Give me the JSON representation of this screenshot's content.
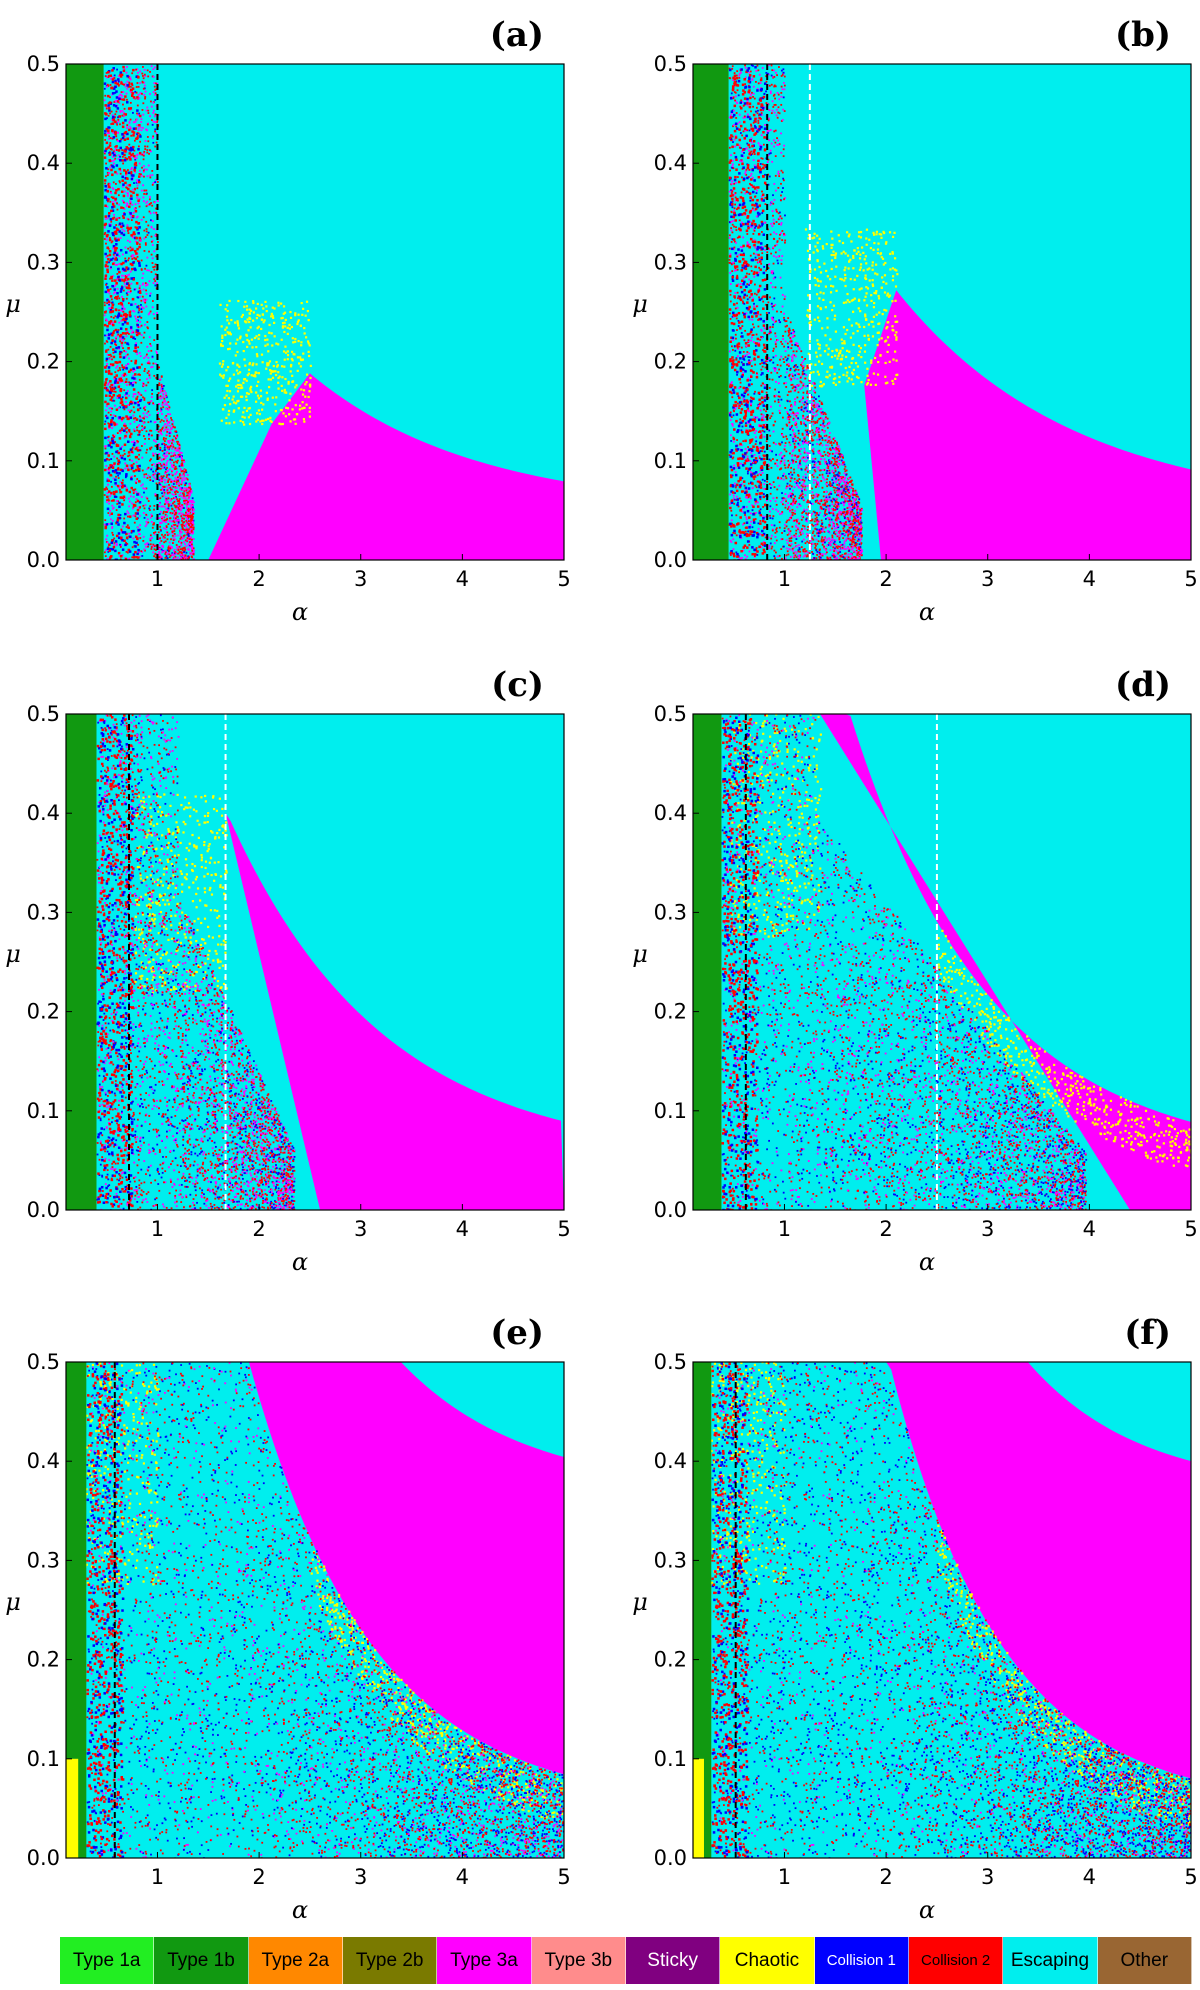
{
  "colors": {
    "type_1a": "#22ee22",
    "type_1b": "#119911",
    "type_2a": "#ff8800",
    "type_2b": "#7a7a00",
    "type_3a": "#ff00ff",
    "type_3b": "#ff8c8c",
    "sticky": "#800080",
    "chaotic": "#ffff00",
    "collision_1": "#0000ff",
    "collision_2": "#ff0000",
    "escaping": "#00eeee",
    "other": "#996633"
  },
  "legend": [
    {
      "label": "Type 1a",
      "color": "#22ee22",
      "text_color": "#000000"
    },
    {
      "label": "Type 1b",
      "color": "#119911",
      "text_color": "#000000"
    },
    {
      "label": "Type 2a",
      "color": "#ff8800",
      "text_color": "#000000"
    },
    {
      "label": "Type 2b",
      "color": "#7a7a00",
      "text_color": "#000000"
    },
    {
      "label": "Type 3a",
      "color": "#ff00ff",
      "text_color": "#000000"
    },
    {
      "label": "Type 3b",
      "color": "#ff8c8c",
      "text_color": "#000000"
    },
    {
      "label": "Sticky",
      "color": "#800080",
      "text_color": "#ffffff"
    },
    {
      "label": "Chaotic",
      "color": "#ffff00",
      "text_color": "#000000"
    },
    {
      "label": "Collision 1",
      "color": "#0000ff",
      "text_color": "#ffffff"
    },
    {
      "label": "Collision 2",
      "color": "#ff0000",
      "text_color": "#000000"
    },
    {
      "label": "Escaping",
      "color": "#00eeee",
      "text_color": "#000000"
    },
    {
      "label": "Other",
      "color": "#996633",
      "text_color": "#000000"
    }
  ],
  "chart_data": [
    {
      "panel": "(a)",
      "type": "heatmap",
      "xlabel": "α",
      "ylabel": "μ",
      "xlim": [
        0.1,
        5
      ],
      "ylim": [
        0,
        0.5
      ],
      "x_ticks": [
        1,
        2,
        3,
        4,
        5
      ],
      "x_tick_labels": [
        "1",
        "2",
        "3",
        "4",
        "5"
      ],
      "y_ticks": [
        0,
        0.1,
        0.2,
        0.3,
        0.4,
        0.5
      ],
      "y_tick_labels": [
        "0.0",
        "0.1",
        "0.2",
        "0.3",
        "0.4",
        "0.5"
      ],
      "markers": [
        {
          "x": 1.0,
          "style": "black-dashed"
        }
      ],
      "boundary_escape": {
        "a": 0.35,
        "b": 0.62
      },
      "chaotic_mu": 0.25,
      "regions": {
        "green_end": 0.47,
        "mixed_end": 1.0,
        "knee_x": 2.5,
        "knee_mu": 0.25,
        "low_x": 1.5
      }
    },
    {
      "panel": "(b)",
      "type": "heatmap",
      "xlabel": "α",
      "ylabel": "μ",
      "xlim": [
        0.1,
        5
      ],
      "ylim": [
        0,
        0.5
      ],
      "x_ticks": [
        1,
        2,
        3,
        4,
        5
      ],
      "x_tick_labels": [
        "1",
        "2",
        "3",
        "4",
        "5"
      ],
      "y_ticks": [
        0,
        0.1,
        0.2,
        0.3,
        0.4,
        0.5
      ],
      "y_tick_labels": [
        "0.0",
        "0.1",
        "0.2",
        "0.3",
        "0.4",
        "0.5"
      ],
      "markers": [
        {
          "x": 0.83,
          "style": "black-dashed"
        },
        {
          "x": 1.25,
          "style": "white-dashed"
        }
      ],
      "boundary_escape": {
        "a": 0.42,
        "b": 0.58
      },
      "chaotic_mu": 0.32,
      "regions": {
        "green_end": 0.45,
        "mixed_end": 1.0,
        "knee_x": 2.1,
        "knee_mu": 0.32,
        "low_x": 1.95
      }
    },
    {
      "panel": "(c)",
      "type": "heatmap",
      "xlabel": "α",
      "ylabel": "μ",
      "xlim": [
        0.1,
        5
      ],
      "ylim": [
        0,
        0.5
      ],
      "x_ticks": [
        1,
        2,
        3,
        4,
        5
      ],
      "x_tick_labels": [
        "1",
        "2",
        "3",
        "4",
        "5"
      ],
      "y_ticks": [
        0,
        0.1,
        0.2,
        0.3,
        0.4,
        0.5
      ],
      "y_tick_labels": [
        "0.0",
        "0.1",
        "0.2",
        "0.3",
        "0.4",
        "0.5"
      ],
      "markers": [
        {
          "x": 0.72,
          "style": "black-dashed"
        },
        {
          "x": 1.67,
          "style": "white-dashed"
        }
      ],
      "boundary_escape": {
        "a": 0.55,
        "b": 0.66
      },
      "chaotic_mu": 0.4,
      "regions": {
        "green_end": 0.4,
        "mixed_end": 1.2,
        "knee_x": 1.67,
        "knee_mu": 0.4,
        "low_x": 2.6
      }
    },
    {
      "panel": "(d)",
      "type": "heatmap",
      "xlabel": "α",
      "ylabel": "μ",
      "xlim": [
        0.1,
        5
      ],
      "ylim": [
        0,
        0.5
      ],
      "x_ticks": [
        1,
        2,
        3,
        4,
        5
      ],
      "x_tick_labels": [
        "1",
        "2",
        "3",
        "4",
        "5"
      ],
      "y_ticks": [
        0,
        0.1,
        0.2,
        0.3,
        0.4,
        0.5
      ],
      "y_tick_labels": [
        "0.0",
        "0.1",
        "0.2",
        "0.3",
        "0.4",
        "0.5"
      ],
      "markers": [
        {
          "x": 0.62,
          "style": "black-dashed"
        },
        {
          "x": 2.5,
          "style": "white-dashed"
        }
      ],
      "boundary_escape": {
        "a": 0.72,
        "b": 0.73
      },
      "chaotic_mu": 0.48,
      "regions": {
        "green_end": 0.38,
        "mixed_end": 1.3,
        "knee_x": 1.35,
        "knee_mu": 0.5,
        "low_x": 4.4
      }
    },
    {
      "panel": "(e)",
      "type": "heatmap",
      "xlabel": "α",
      "ylabel": "μ",
      "xlim": [
        0.1,
        5
      ],
      "ylim": [
        0,
        0.5
      ],
      "x_ticks": [
        1,
        2,
        3,
        4,
        5
      ],
      "x_tick_labels": [
        "1",
        "2",
        "3",
        "4",
        "5"
      ],
      "y_ticks": [
        0,
        0.1,
        0.2,
        0.3,
        0.4,
        0.5
      ],
      "y_tick_labels": [
        "0.0",
        "0.1",
        "0.2",
        "0.3",
        "0.4",
        "0.5"
      ],
      "markers": [
        {
          "x": 0.58,
          "style": "black-dashed"
        }
      ],
      "boundary_escape": {
        "a": 0.95,
        "b": 0.83
      },
      "chaotic_mu": 0.08,
      "regions": {
        "green_end": 0.3,
        "mixed_end": 1.0,
        "knee_x": 1.0,
        "knee_mu": 0.5,
        "low_x": 5
      }
    },
    {
      "panel": "(f)",
      "type": "heatmap",
      "xlabel": "α",
      "ylabel": "μ",
      "xlim": [
        0.1,
        5
      ],
      "ylim": [
        0,
        0.5
      ],
      "x_ticks": [
        1,
        2,
        3,
        4,
        5
      ],
      "x_tick_labels": [
        "1",
        "2",
        "3",
        "4",
        "5"
      ],
      "y_ticks": [
        0,
        0.1,
        0.2,
        0.3,
        0.4,
        0.5
      ],
      "y_tick_labels": [
        "0.0",
        "0.1",
        "0.2",
        "0.3",
        "0.4",
        "0.5"
      ],
      "markers": [
        {
          "x": 0.52,
          "style": "black-dashed"
        }
      ],
      "boundary_escape": {
        "a": 1.15,
        "b": 0.91
      },
      "chaotic_mu": 0.14,
      "regions": {
        "green_end": 0.28,
        "mixed_end": 1.0,
        "knee_x": 1.0,
        "knee_mu": 0.5,
        "low_x": 5
      }
    }
  ]
}
